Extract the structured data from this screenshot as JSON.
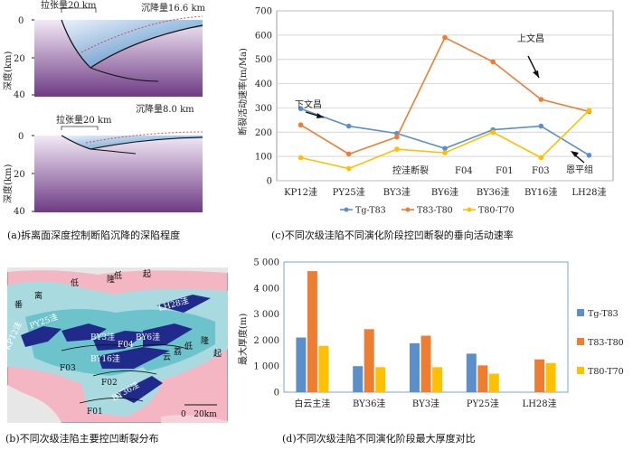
{
  "figure": {
    "panel_a": {
      "caption": "(a)拆离面深度控制断陷沉降的深陷程度",
      "ylabel": "深度(km)",
      "top": {
        "extension": "拉张量20 km",
        "subsidence": "沉降量16.6 km",
        "ticks": [
          "0",
          "20",
          "40"
        ]
      },
      "bottom": {
        "extension": "拉张量20 km",
        "subsidence": "沉降量8.0 km",
        "ticks": [
          "0",
          "20",
          "40"
        ]
      }
    },
    "panel_b": {
      "caption": "(b)不同次级洼陷主要控凹断裂分布",
      "map_labels": [
        "KP12洼",
        "PY25洼",
        "BY3洼",
        "F04",
        "BY6洼",
        "LH28洼",
        "F03",
        "BY16洼",
        "F02",
        "BY36洼",
        "F01",
        "离",
        "番",
        "低",
        "隆",
        "起",
        "起",
        "云",
        "荔",
        "低",
        "隆",
        "低"
      ],
      "scale": "0   20km"
    },
    "panel_c": {
      "caption": "(c)不同次级洼陷不同演化阶段控凹断裂的垂向活动速率",
      "chart_data": {
        "type": "line",
        "categories": [
          "KP12洼",
          "PY25洼",
          "BY3洼",
          "BY6洼",
          "BY36洼",
          "BY16洼",
          "LH28洼"
        ],
        "ylabel": "断裂活动速率(m/Ma)",
        "ylim": [
          0,
          700
        ],
        "yticks": [
          "0",
          "100",
          "200",
          "300",
          "400",
          "500",
          "600",
          "700"
        ],
        "grid": true,
        "legend": "bottom",
        "series": [
          {
            "name": "Tg-T83",
            "color": "#5b8fc9",
            "values": [
              297,
              225,
              195,
              133,
              210,
              225,
              105
            ]
          },
          {
            "name": "T83-T80",
            "color": "#ed7d31",
            "values": [
              230,
              110,
              180,
              590,
              490,
              335,
              285
            ]
          },
          {
            "name": "T80-T70",
            "color": "#ffc000",
            "values": [
              95,
              50,
              130,
              115,
              200,
              95,
              290
            ]
          }
        ],
        "annotations": [
          "下文昌",
          "上文昌",
          "恩平组",
          "控洼断裂",
          "F04",
          "F01",
          "F03"
        ]
      }
    },
    "panel_d": {
      "caption": "(d)不同次级洼陷不同演化阶段最大厚度对比",
      "chart_data": {
        "type": "bar",
        "categories": [
          "白云主洼",
          "BY36洼",
          "BY3洼",
          "PY25洼",
          "LH28洼"
        ],
        "ylabel": "最大厚度(m)",
        "ylim": [
          0,
          5000
        ],
        "yticks": [
          "0",
          "1 000",
          "2 000",
          "3 000",
          "4 000",
          "5 000"
        ],
        "legend": "right",
        "series": [
          {
            "name": "Tg-T83",
            "color": "#5b8fc9",
            "values": [
              2100,
              1000,
              1880,
              1480,
              null
            ]
          },
          {
            "name": "T83-T80",
            "color": "#ed7d31",
            "values": [
              4650,
              2420,
              2170,
              1030,
              1260
            ]
          },
          {
            "name": "T80-T70",
            "color": "#ffc000",
            "values": [
              1780,
              960,
              960,
              710,
              1120
            ]
          }
        ]
      }
    }
  }
}
